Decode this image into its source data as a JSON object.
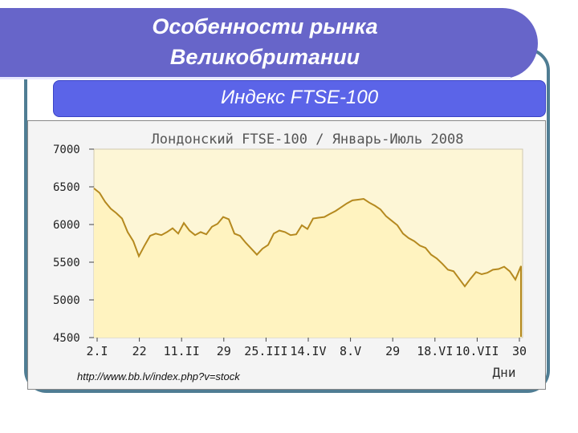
{
  "slide": {
    "title_line1": "Особенности рынка",
    "title_line2": "Великобритании",
    "subtitle": "Индекс FTSE-100",
    "source": "http://www.bb.lv/index.php?v=stock"
  },
  "colors": {
    "banner": "#6765c9",
    "subtitle_bar": "#5b64e8",
    "plot_fill": "#fdf6d6",
    "line": "#b5891f"
  },
  "chart_data": {
    "type": "area",
    "title": "Лондонский FTSE-100 / Январь-Июль 2008",
    "xlabel": "Дни",
    "ylabel": "",
    "ylim": [
      4500,
      7000
    ],
    "yticks": [
      7000,
      6500,
      6000,
      5500,
      5000,
      4500
    ],
    "xticks": [
      "2.I",
      "22",
      "11.II",
      "29",
      "25.III",
      "14.IV",
      "8.V",
      "29",
      "18.VI",
      "10.VII",
      "30"
    ],
    "grid": false,
    "series": [
      {
        "values": [
          6480,
          6420,
          6300,
          6210,
          6150,
          6080,
          5900,
          5780,
          5580,
          5720,
          5850,
          5880,
          5860,
          5900,
          5950,
          5880,
          6020,
          5920,
          5860,
          5900,
          5870,
          5970,
          6010,
          6100,
          6070,
          5880,
          5850,
          5760,
          5680,
          5600,
          5680,
          5730,
          5880,
          5920,
          5900,
          5860,
          5870,
          5990,
          5940,
          6080,
          6090,
          6100,
          6140,
          6180,
          6230,
          6280,
          6320,
          6330,
          6340,
          6290,
          6250,
          6200,
          6110,
          6050,
          5990,
          5880,
          5820,
          5780,
          5720,
          5690,
          5600,
          5550,
          5480,
          5400,
          5380,
          5280,
          5180,
          5280,
          5370,
          5340,
          5360,
          5400,
          5410,
          5440,
          5380,
          5270,
          5450
        ]
      }
    ]
  }
}
